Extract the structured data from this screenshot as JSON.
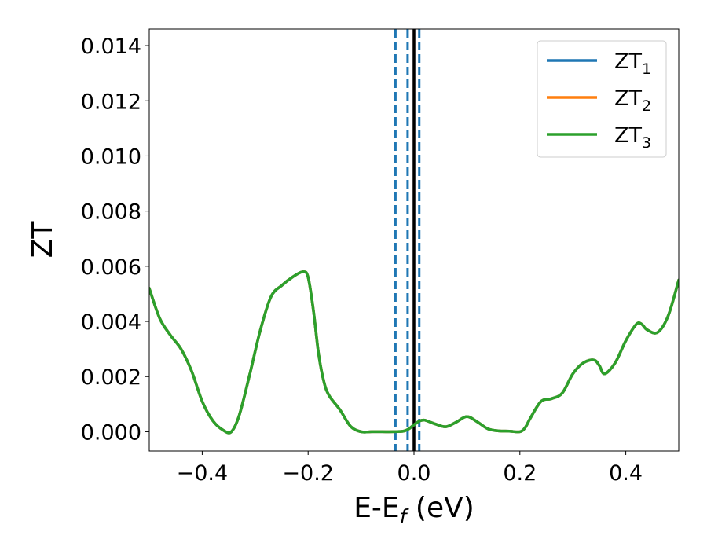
{
  "chart_data": {
    "type": "line",
    "xlabel": "E-E",
    "xlabel_sub": "f",
    "xlabel_unit": " (eV)",
    "ylabel": "ZT",
    "xlim": [
      -0.5,
      0.5
    ],
    "ylim": [
      -0.0007,
      0.0146
    ],
    "x_ticks": [
      -0.4,
      -0.2,
      0.0,
      0.2,
      0.4
    ],
    "x_tick_labels": [
      "−0.4",
      "−0.2",
      "0.0",
      "0.2",
      "0.4"
    ],
    "y_ticks": [
      0.0,
      0.002,
      0.004,
      0.006,
      0.008,
      0.01,
      0.012,
      0.014
    ],
    "y_tick_labels": [
      "0.000",
      "0.002",
      "0.004",
      "0.006",
      "0.008",
      "0.010",
      "0.012",
      "0.014"
    ],
    "grid": false,
    "legend_position": "top-right",
    "legend": [
      {
        "name": "ZT",
        "sub": "1",
        "color": "#1f77b4"
      },
      {
        "name": "ZT",
        "sub": "2",
        "color": "#ff7f0e"
      },
      {
        "name": "ZT",
        "sub": "3",
        "color": "#2ca02c"
      }
    ],
    "vlines": [
      {
        "x": -0.035,
        "style": "dashed",
        "color": "#1f77b4"
      },
      {
        "x": -0.012,
        "style": "dashed",
        "color": "#1f77b4"
      },
      {
        "x": 0.01,
        "style": "dashed",
        "color": "#1f77b4"
      },
      {
        "x": 0.0,
        "style": "solid",
        "color": "#000000"
      }
    ],
    "x": [
      -0.5,
      -0.48,
      -0.46,
      -0.44,
      -0.42,
      -0.4,
      -0.38,
      -0.36,
      -0.345,
      -0.33,
      -0.31,
      -0.29,
      -0.27,
      -0.25,
      -0.23,
      -0.21,
      -0.2,
      -0.19,
      -0.18,
      -0.17,
      -0.16,
      -0.14,
      -0.12,
      -0.1,
      -0.08,
      -0.06,
      -0.04,
      -0.02,
      -0.01,
      0.0,
      0.01,
      0.02,
      0.04,
      0.06,
      0.08,
      0.1,
      0.12,
      0.14,
      0.16,
      0.18,
      0.2,
      0.21,
      0.22,
      0.24,
      0.26,
      0.28,
      0.3,
      0.32,
      0.34,
      0.35,
      0.36,
      0.38,
      0.4,
      0.42,
      0.43,
      0.44,
      0.46,
      0.48,
      0.5
    ],
    "series": [
      {
        "color": "#1f77b4",
        "values": [
          0.0052,
          0.0041,
          0.0035,
          0.003,
          0.0022,
          0.0011,
          0.0004,
          5e-05,
          0.0,
          0.0006,
          0.0021,
          0.0037,
          0.0049,
          0.0053,
          0.0056,
          0.0058,
          0.0056,
          0.0044,
          0.0028,
          0.0018,
          0.0013,
          0.0008,
          0.0002,
          0.0,
          0.0,
          0.0,
          0.0,
          2e-05,
          0.0001,
          0.00025,
          0.00038,
          0.00042,
          0.00028,
          0.00018,
          0.00035,
          0.00055,
          0.00035,
          0.0001,
          3e-05,
          2e-05,
          0.0,
          0.00015,
          0.0005,
          0.0011,
          0.0012,
          0.0014,
          0.0021,
          0.0025,
          0.0026,
          0.0024,
          0.0021,
          0.0025,
          0.0033,
          0.0039,
          0.0039,
          0.0037,
          0.0036,
          0.0042,
          0.0055
        ]
      },
      {
        "color": "#ff7f0e",
        "values": [
          0.0052,
          0.0041,
          0.0035,
          0.003,
          0.0022,
          0.0011,
          0.0004,
          5e-05,
          0.0,
          0.0006,
          0.0021,
          0.0037,
          0.0049,
          0.0053,
          0.0056,
          0.0058,
          0.0056,
          0.0044,
          0.0028,
          0.0018,
          0.0013,
          0.0008,
          0.0002,
          0.0,
          0.0,
          0.0,
          0.0,
          2e-05,
          0.0001,
          0.00025,
          0.00038,
          0.00042,
          0.00028,
          0.00018,
          0.00035,
          0.00055,
          0.00035,
          0.0001,
          3e-05,
          2e-05,
          0.0,
          0.00015,
          0.0005,
          0.0011,
          0.0012,
          0.0014,
          0.0021,
          0.0025,
          0.0026,
          0.0024,
          0.0021,
          0.0025,
          0.0033,
          0.0039,
          0.0039,
          0.0037,
          0.0036,
          0.0042,
          0.0055
        ]
      },
      {
        "color": "#2ca02c",
        "values": [
          0.0052,
          0.0041,
          0.0035,
          0.003,
          0.0022,
          0.0011,
          0.0004,
          5e-05,
          0.0,
          0.0006,
          0.0021,
          0.0037,
          0.0049,
          0.0053,
          0.0056,
          0.0058,
          0.0056,
          0.0044,
          0.0028,
          0.0018,
          0.0013,
          0.0008,
          0.0002,
          0.0,
          0.0,
          0.0,
          0.0,
          2e-05,
          0.0001,
          0.00025,
          0.00038,
          0.00042,
          0.00028,
          0.00018,
          0.00035,
          0.00055,
          0.00035,
          0.0001,
          3e-05,
          2e-05,
          0.0,
          0.00015,
          0.0005,
          0.0011,
          0.0012,
          0.0014,
          0.0021,
          0.0025,
          0.0026,
          0.0024,
          0.0021,
          0.0025,
          0.0033,
          0.0039,
          0.0039,
          0.0037,
          0.0036,
          0.0042,
          0.0055
        ]
      }
    ]
  }
}
